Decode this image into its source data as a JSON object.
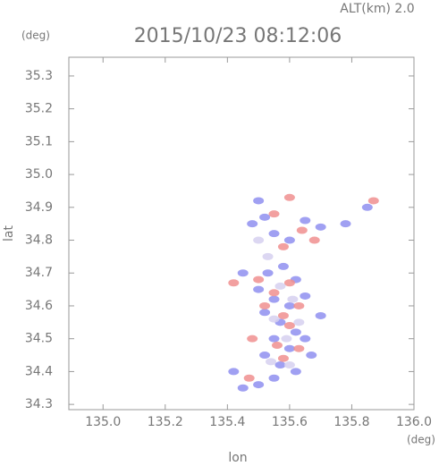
{
  "chart_data": {
    "type": "scatter",
    "title": "2015/10/23 08:12:06",
    "subtitle": "ALT(km) 2.0",
    "x_label": "lon",
    "y_label": "lat",
    "x_unit": "(deg)",
    "y_unit": "(deg)",
    "xlim": [
      134.89,
      136.0
    ],
    "ylim": [
      34.284,
      35.357
    ],
    "xticks": [
      {
        "value": 135,
        "label": "135.0"
      },
      135.2,
      135.4,
      135.6,
      135.8,
      {
        "value": 136,
        "label": "136.0"
      }
    ],
    "yticks": [
      34.3,
      34.4,
      34.5,
      34.6,
      34.7,
      34.8,
      34.9,
      {
        "value": 35,
        "label": "35.0"
      },
      35.1,
      35.2,
      35.3
    ],
    "series": [
      {
        "color": "#8f8ff0",
        "x": [
          135.5,
          135.52,
          135.48,
          135.55,
          135.6,
          135.65,
          135.7,
          135.53,
          135.58,
          135.62,
          135.5,
          135.55,
          135.6,
          135.65,
          135.52,
          135.57,
          135.62,
          135.55,
          135.6,
          135.65,
          135.52,
          135.57,
          135.62,
          135.55,
          135.45,
          135.5,
          135.42,
          135.67,
          135.45,
          135.78,
          135.85,
          135.7
        ],
        "y": [
          34.92,
          34.87,
          34.85,
          34.82,
          34.8,
          34.86,
          34.84,
          34.7,
          34.72,
          34.68,
          34.65,
          34.62,
          34.6,
          34.63,
          34.58,
          34.55,
          34.52,
          34.5,
          34.47,
          34.5,
          34.45,
          34.42,
          34.4,
          34.38,
          34.35,
          34.36,
          34.4,
          34.45,
          34.7,
          34.85,
          34.9,
          34.57
        ]
      },
      {
        "color": "#f08f8f",
        "x": [
          135.6,
          135.55,
          135.64,
          135.58,
          135.68,
          135.5,
          135.6,
          135.55,
          135.63,
          135.58,
          135.52,
          135.6,
          135.56,
          135.63,
          135.48,
          135.47,
          135.58,
          135.42,
          135.87
        ],
        "y": [
          34.93,
          34.88,
          34.83,
          34.78,
          34.8,
          34.68,
          34.67,
          34.64,
          34.6,
          34.57,
          34.6,
          34.54,
          34.48,
          34.47,
          34.5,
          34.38,
          34.44,
          34.67,
          34.92
        ]
      },
      {
        "color": "#d6d0f0",
        "x": [
          135.53,
          135.57,
          135.61,
          135.55,
          135.59,
          135.63,
          135.54,
          135.6,
          135.5
        ],
        "y": [
          34.75,
          34.66,
          34.62,
          34.56,
          34.5,
          34.55,
          34.43,
          34.42,
          34.8
        ]
      }
    ]
  }
}
